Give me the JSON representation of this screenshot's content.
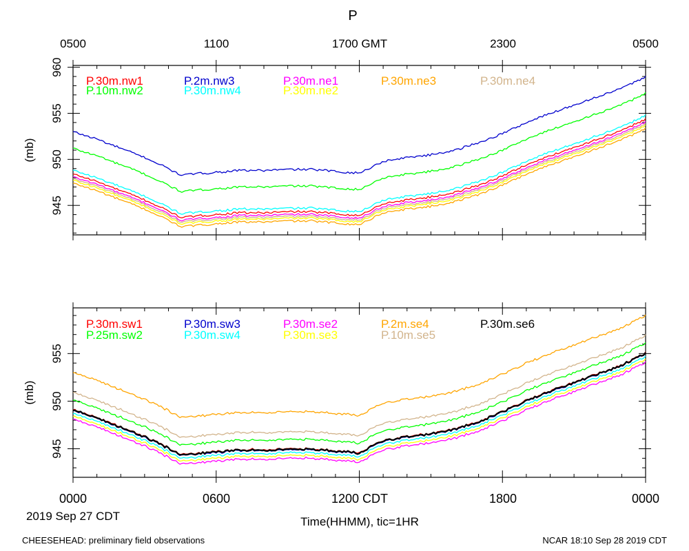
{
  "title": "P",
  "top_axis_ticks": [
    "0500",
    "1100",
    "1700 GMT",
    "2300",
    "0500"
  ],
  "bottom_axis_ticks": [
    "0000",
    "0600",
    "1200 CDT",
    "1800",
    "0000"
  ],
  "date_label": "2019 Sep 27 CDT",
  "xlabel": "Time(HHMM), tic=1HR",
  "footer_left": "CHEESEHEAD: preliminary field observations",
  "footer_right": "NCAR 18:10 Sep 28 2019 CDT",
  "chart_data": [
    {
      "type": "line",
      "ylabel": "(mb)",
      "ylim": [
        941.8,
        960.2
      ],
      "yticks": [
        945,
        950,
        955,
        960
      ],
      "xlim_hours": [
        0,
        24
      ],
      "x_hours": [
        0,
        1,
        2,
        3,
        4,
        4.5,
        5,
        6,
        7,
        8,
        9,
        10,
        11,
        12,
        13,
        14,
        15,
        16,
        17,
        18,
        19,
        20,
        21,
        22,
        23,
        24
      ],
      "base_profile": [
        953.0,
        952.2,
        951.2,
        950.2,
        949.0,
        948.3,
        948.4,
        948.6,
        948.8,
        948.8,
        948.9,
        948.9,
        948.7,
        948.5,
        949.8,
        950.2,
        950.5,
        951.0,
        951.8,
        952.8,
        954.0,
        955.0,
        955.9,
        956.8,
        957.7,
        959.0
      ],
      "series": [
        {
          "name": "P.30m.nw1",
          "color": "#ff0000",
          "offset": -4.6
        },
        {
          "name": "P.10m.nw2",
          "color": "#00ff00",
          "offset": -1.8
        },
        {
          "name": "P.2m.nw3",
          "color": "#0000cd",
          "offset": 0.0
        },
        {
          "name": "P.30m.nw4",
          "color": "#00ffff",
          "offset": -4.2
        },
        {
          "name": "P.30m.ne1",
          "color": "#ff00ff",
          "offset": -4.9
        },
        {
          "name": "P.30m.ne2",
          "color": "#ffff00",
          "offset": -5.3
        },
        {
          "name": "P.30m.ne3",
          "color": "#ffa500",
          "offset": -5.6
        },
        {
          "name": "P.30m.ne4",
          "color": "#d2b48c",
          "offset": -5.1
        }
      ]
    },
    {
      "type": "line",
      "ylabel": "(mb)",
      "ylim": [
        942.0,
        959.8
      ],
      "yticks": [
        945,
        950,
        955
      ],
      "xlim_hours": [
        0,
        24
      ],
      "x_hours": [
        0,
        1,
        2,
        3,
        4,
        4.5,
        5,
        6,
        7,
        8,
        9,
        10,
        11,
        12,
        13,
        14,
        15,
        16,
        17,
        18,
        19,
        20,
        21,
        22,
        23,
        24
      ],
      "base_profile": [
        953.0,
        952.2,
        951.2,
        950.2,
        949.0,
        948.3,
        948.4,
        948.6,
        948.8,
        948.8,
        948.9,
        948.9,
        948.7,
        948.5,
        949.8,
        950.2,
        950.5,
        951.0,
        951.8,
        952.8,
        954.0,
        955.0,
        955.9,
        956.8,
        957.7,
        959.0
      ],
      "series": [
        {
          "name": "P.30m.sw1",
          "color": "#ff0000",
          "offset": -3.9
        },
        {
          "name": "P.25m.sw2",
          "color": "#00ff00",
          "offset": -2.9
        },
        {
          "name": "P.30m.sw3",
          "color": "#0000cd",
          "offset": -4.0
        },
        {
          "name": "P.30m.sw4",
          "color": "#00ffff",
          "offset": -4.3
        },
        {
          "name": "P.30m.se2",
          "color": "#ff00ff",
          "offset": -4.9
        },
        {
          "name": "P.30m.se3",
          "color": "#ffff00",
          "offset": -4.6
        },
        {
          "name": "P.2m.se4",
          "color": "#ffa500",
          "offset": 0.0
        },
        {
          "name": "P.10m.se5",
          "color": "#d2b48c",
          "offset": -2.1
        },
        {
          "name": "P.30m.se6",
          "color": "#000000",
          "offset": -3.95
        }
      ]
    }
  ]
}
